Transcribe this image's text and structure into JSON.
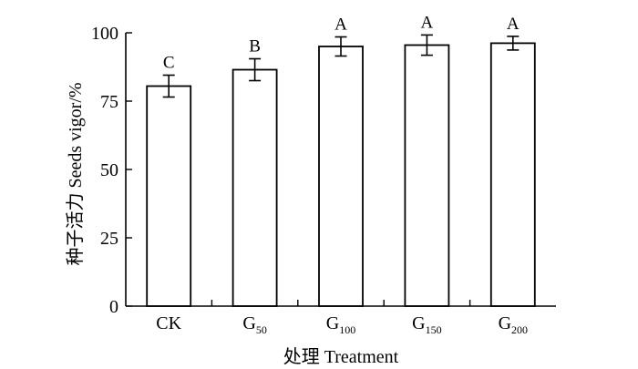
{
  "chart_data": {
    "type": "bar",
    "title": "",
    "xlabel": "处理 Treatment",
    "ylabel": "种子活力 Seeds vigor/%",
    "ylim": [
      0,
      100
    ],
    "yticks": [
      0,
      25,
      50,
      75,
      100
    ],
    "grid": false,
    "categories": [
      {
        "base": "CK",
        "sub": ""
      },
      {
        "base": "G",
        "sub": "50"
      },
      {
        "base": "G",
        "sub": "100"
      },
      {
        "base": "G",
        "sub": "150"
      },
      {
        "base": "G",
        "sub": "200"
      }
    ],
    "values": [
      80.5,
      86.5,
      95.0,
      95.5,
      96.2
    ],
    "errors": [
      4.0,
      4.0,
      3.5,
      3.7,
      2.5
    ],
    "significance": [
      "C",
      "B",
      "A",
      "A",
      "A"
    ]
  }
}
